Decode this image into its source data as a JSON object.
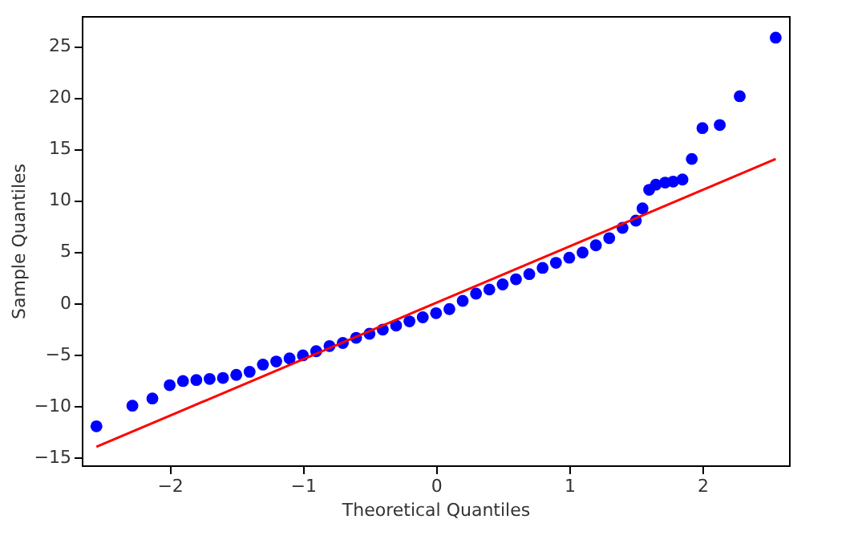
{
  "chart_data": {
    "type": "scatter",
    "xlabel": "Theoretical Quantiles",
    "ylabel": "Sample Quantiles",
    "xlim": [
      -2.66,
      2.65
    ],
    "ylim": [
      -15.8,
      27.9
    ],
    "xticks": [
      -2,
      -1,
      0,
      1,
      2
    ],
    "yticks": [
      -15,
      -10,
      -5,
      0,
      5,
      10,
      15,
      20,
      25
    ],
    "grid": false,
    "marker": "circle",
    "series": [
      {
        "color": "#0000ff",
        "x": [
          -2.55,
          -2.28,
          -2.13,
          -2.0,
          -1.9,
          -1.8,
          -1.7,
          -1.6,
          -1.5,
          -1.4,
          -1.3,
          -1.2,
          -1.1,
          -1.0,
          -0.9,
          -0.8,
          -0.7,
          -0.6,
          -0.5,
          -0.4,
          -0.3,
          -0.2,
          -0.1,
          0,
          0.1,
          0.2,
          0.3,
          0.4,
          0.5,
          0.6,
          0.7,
          0.8,
          0.9,
          1.0,
          1.1,
          1.2,
          1.3,
          1.4,
          1.5,
          1.55,
          1.6,
          1.65,
          1.72,
          1.78,
          1.85,
          1.92,
          2.0,
          2.13,
          2.28,
          2.55
        ],
        "values": [
          -12,
          -10,
          -9.3,
          -8,
          -7.6,
          -7.5,
          -7.4,
          -7.3,
          -7.0,
          -6.7,
          -6.0,
          -5.7,
          -5.4,
          -5.1,
          -4.7,
          -4.2,
          -3.9,
          -3.4,
          -3.0,
          -2.6,
          -2.2,
          -1.8,
          -1.4,
          -1.0,
          -0.6,
          0.2,
          0.9,
          1.3,
          1.8,
          2.3,
          2.8,
          3.4,
          3.9,
          4.4,
          4.9,
          5.6,
          6.3,
          7.3,
          8.0,
          9.2,
          11.0,
          11.5,
          11.7,
          11.8,
          12.0,
          14.0,
          17.0,
          17.3,
          20.1,
          25.8
        ]
      },
      {
        "type": "line",
        "color": "#ff0000",
        "x": [
          -2.55,
          2.55
        ],
        "values": [
          -14,
          14
        ],
        "line_style": "solid",
        "marker": "none"
      }
    ]
  }
}
